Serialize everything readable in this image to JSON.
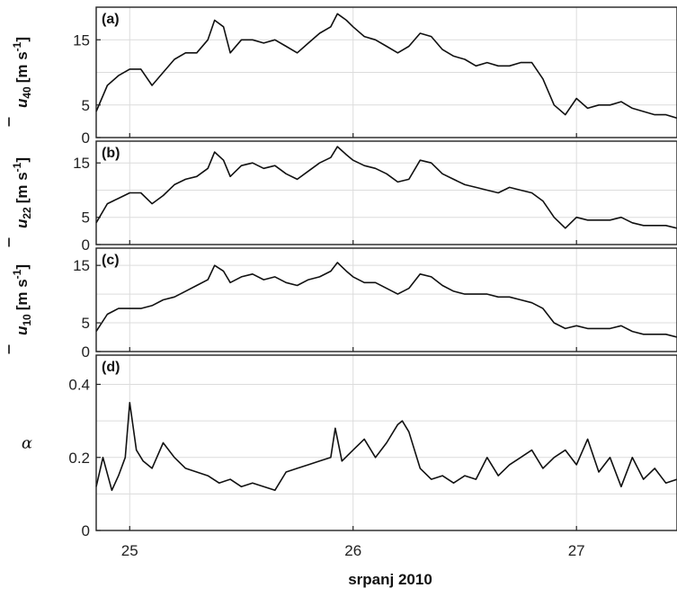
{
  "chart_data": [
    {
      "type": "line",
      "panel_label": "(a)",
      "ylabel_symbol": "u",
      "ylabel_subscript": "40",
      "ylabel_units": "[m s",
      "ylabel_exp": "-1",
      "ylabel_close": "]",
      "ylim": [
        0,
        20
      ],
      "yticks": [
        {
          "value": 0,
          "label": "0"
        },
        {
          "value": 5,
          "label": "5"
        },
        {
          "value": 15,
          "label": "15"
        }
      ],
      "gridlines": [
        5,
        10,
        15
      ],
      "series": [
        {
          "x": [
            24.85,
            24.9,
            24.95,
            25.0,
            25.05,
            25.1,
            25.15,
            25.2,
            25.25,
            25.3,
            25.35,
            25.38,
            25.42,
            25.45,
            25.5,
            25.55,
            25.6,
            25.65,
            25.7,
            25.75,
            25.8,
            25.85,
            25.9,
            25.93,
            25.97,
            26.0,
            26.05,
            26.1,
            26.15,
            26.2,
            26.25,
            26.3,
            26.35,
            26.4,
            26.45,
            26.5,
            26.55,
            26.6,
            26.65,
            26.7,
            26.75,
            26.8,
            26.85,
            26.9,
            26.95,
            27.0,
            27.05,
            27.1,
            27.15,
            27.2,
            27.25,
            27.3,
            27.35,
            27.4,
            27.45
          ],
          "values": [
            4,
            8,
            9.5,
            10.5,
            10.5,
            8,
            10,
            12,
            13,
            13,
            15,
            18,
            17,
            13,
            15,
            15,
            14.5,
            15,
            14,
            13,
            14.5,
            16,
            17,
            19,
            18,
            17,
            15.5,
            15,
            14,
            13,
            14,
            16,
            15.5,
            13.5,
            12.5,
            12,
            11,
            11.5,
            11,
            11,
            11.5,
            11.5,
            9,
            5,
            3.5,
            6,
            4.5,
            5,
            5,
            5.5,
            4.5,
            4,
            3.5,
            3.5,
            3
          ]
        }
      ]
    },
    {
      "type": "line",
      "panel_label": "(b)",
      "ylabel_symbol": "u",
      "ylabel_subscript": "22",
      "ylabel_units": "[m s",
      "ylabel_exp": "-1",
      "ylabel_close": "]",
      "ylim": [
        0,
        19
      ],
      "yticks": [
        {
          "value": 0,
          "label": "0"
        },
        {
          "value": 5,
          "label": "5"
        },
        {
          "value": 15,
          "label": "15"
        }
      ],
      "gridlines": [
        5,
        10,
        15
      ],
      "series": [
        {
          "x": [
            24.85,
            24.9,
            24.95,
            25.0,
            25.05,
            25.1,
            25.15,
            25.2,
            25.25,
            25.3,
            25.35,
            25.38,
            25.42,
            25.45,
            25.5,
            25.55,
            25.6,
            25.65,
            25.7,
            25.75,
            25.8,
            25.85,
            25.9,
            25.93,
            25.97,
            26.0,
            26.05,
            26.1,
            26.15,
            26.2,
            26.25,
            26.3,
            26.35,
            26.4,
            26.45,
            26.5,
            26.55,
            26.6,
            26.65,
            26.7,
            26.75,
            26.8,
            26.85,
            26.9,
            26.95,
            27.0,
            27.05,
            27.1,
            27.15,
            27.2,
            27.25,
            27.3,
            27.35,
            27.4,
            27.45
          ],
          "values": [
            4,
            7.5,
            8.5,
            9.5,
            9.5,
            7.5,
            9,
            11,
            12,
            12.5,
            14,
            17,
            15.5,
            12.5,
            14.5,
            15,
            14,
            14.5,
            13,
            12,
            13.5,
            15,
            16,
            18,
            16.5,
            15.5,
            14.5,
            14,
            13,
            11.5,
            12,
            15.5,
            15,
            13,
            12,
            11,
            10.5,
            10,
            9.5,
            10.5,
            10,
            9.5,
            8,
            5,
            3,
            5,
            4.5,
            4.5,
            4.5,
            5,
            4,
            3.5,
            3.5,
            3.5,
            3
          ]
        }
      ]
    },
    {
      "type": "line",
      "panel_label": "(c)",
      "ylabel_symbol": "u",
      "ylabel_subscript": "10",
      "ylabel_units": "[m s",
      "ylabel_exp": "-1",
      "ylabel_close": "]",
      "ylim": [
        0,
        18
      ],
      "yticks": [
        {
          "value": 0,
          "label": "0"
        },
        {
          "value": 5,
          "label": "5"
        },
        {
          "value": 15,
          "label": "15"
        }
      ],
      "gridlines": [
        5,
        10,
        15
      ],
      "series": [
        {
          "x": [
            24.85,
            24.9,
            24.95,
            25.0,
            25.05,
            25.1,
            25.15,
            25.2,
            25.25,
            25.3,
            25.35,
            25.38,
            25.42,
            25.45,
            25.5,
            25.55,
            25.6,
            25.65,
            25.7,
            25.75,
            25.8,
            25.85,
            25.9,
            25.93,
            25.97,
            26.0,
            26.05,
            26.1,
            26.15,
            26.2,
            26.25,
            26.3,
            26.35,
            26.4,
            26.45,
            26.5,
            26.55,
            26.6,
            26.65,
            26.7,
            26.75,
            26.8,
            26.85,
            26.9,
            26.95,
            27.0,
            27.05,
            27.1,
            27.15,
            27.2,
            27.25,
            27.3,
            27.35,
            27.4,
            27.45
          ],
          "values": [
            3.5,
            6.5,
            7.5,
            7.5,
            7.5,
            8,
            9,
            9.5,
            10.5,
            11.5,
            12.5,
            15,
            14,
            12,
            13,
            13.5,
            12.5,
            13,
            12,
            11.5,
            12.5,
            13,
            14,
            15.5,
            14,
            13,
            12,
            12,
            11,
            10,
            11,
            13.5,
            13,
            11.5,
            10.5,
            10,
            10,
            10,
            9.5,
            9.5,
            9,
            8.5,
            7.5,
            5,
            4,
            4.5,
            4,
            4,
            4,
            4.5,
            3.5,
            3,
            3,
            3,
            2.5
          ]
        }
      ]
    },
    {
      "type": "line",
      "panel_label": "(d)",
      "ylabel_symbol": "α",
      "ylim": [
        0,
        0.48
      ],
      "yticks": [
        {
          "value": 0,
          "label": "0"
        },
        {
          "value": 0.2,
          "label": "0.2"
        },
        {
          "value": 0.4,
          "label": "0.4"
        }
      ],
      "gridlines": [
        0.1,
        0.2,
        0.3,
        0.4
      ],
      "series": [
        {
          "x": [
            24.85,
            24.88,
            24.92,
            24.95,
            24.98,
            25.0,
            25.03,
            25.06,
            25.1,
            25.15,
            25.2,
            25.25,
            25.3,
            25.35,
            25.4,
            25.45,
            25.5,
            25.55,
            25.6,
            25.65,
            25.7,
            25.75,
            25.8,
            25.85,
            25.9,
            25.92,
            25.95,
            26.0,
            26.05,
            26.1,
            26.15,
            26.2,
            26.22,
            26.25,
            26.3,
            26.35,
            26.4,
            26.45,
            26.5,
            26.55,
            26.6,
            26.65,
            26.7,
            26.75,
            26.8,
            26.85,
            26.9,
            26.95,
            27.0,
            27.05,
            27.1,
            27.15,
            27.2,
            27.25,
            27.3,
            27.35,
            27.4,
            27.45
          ],
          "values": [
            0.12,
            0.2,
            0.11,
            0.15,
            0.2,
            0.35,
            0.22,
            0.19,
            0.17,
            0.24,
            0.2,
            0.17,
            0.16,
            0.15,
            0.13,
            0.14,
            0.12,
            0.13,
            0.12,
            0.11,
            0.16,
            0.17,
            0.18,
            0.19,
            0.2,
            0.28,
            0.19,
            0.22,
            0.25,
            0.2,
            0.24,
            0.29,
            0.3,
            0.27,
            0.17,
            0.14,
            0.15,
            0.13,
            0.15,
            0.14,
            0.2,
            0.15,
            0.18,
            0.2,
            0.22,
            0.17,
            0.2,
            0.22,
            0.18,
            0.25,
            0.16,
            0.2,
            0.12,
            0.2,
            0.14,
            0.17,
            0.13,
            0.14
          ]
        }
      ]
    }
  ],
  "x_axis": {
    "xlim": [
      24.85,
      27.45
    ],
    "ticks": [
      {
        "value": 25,
        "label": "25"
      },
      {
        "value": 26,
        "label": "26"
      },
      {
        "value": 27,
        "label": "27"
      }
    ],
    "xlabel": "srpanj 2010"
  }
}
